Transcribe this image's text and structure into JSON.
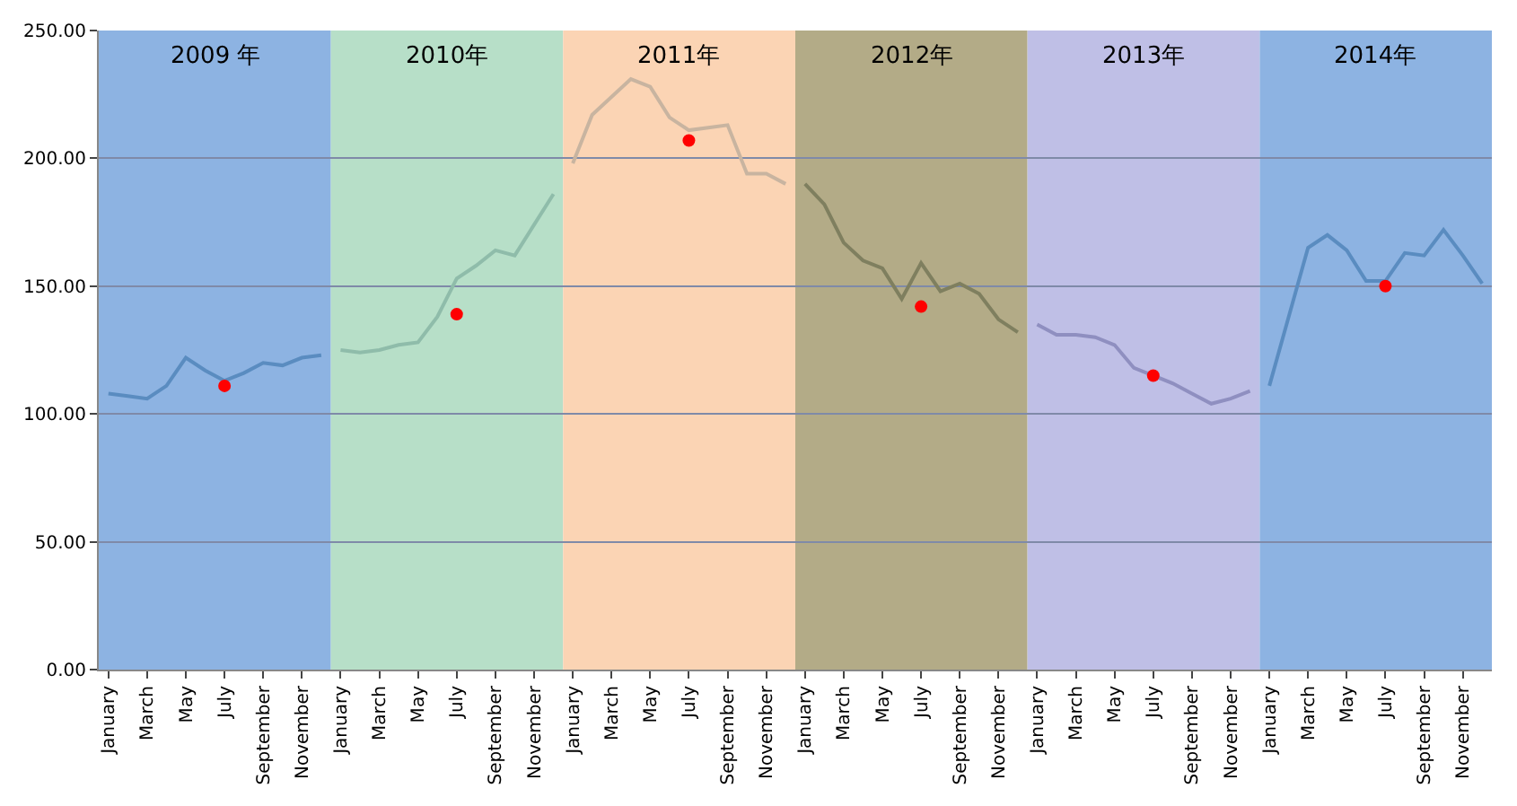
{
  "chart_data": {
    "type": "line",
    "categories": [
      "January",
      null,
      "March",
      null,
      "May",
      null,
      "July",
      null,
      "September",
      null,
      "November",
      null,
      "January",
      null,
      "March",
      null,
      "May",
      null,
      "July",
      null,
      "September",
      null,
      "November",
      null,
      "January",
      null,
      "March",
      null,
      "May",
      null,
      "July",
      null,
      "September",
      null,
      "November",
      null,
      "January",
      null,
      "March",
      null,
      "May",
      null,
      "July",
      null,
      "September",
      null,
      "November",
      null,
      "January",
      null,
      "March",
      null,
      "May",
      null,
      "July",
      null,
      "September",
      null,
      "November",
      null,
      "January",
      null,
      "March",
      null,
      "May",
      null,
      "July",
      null,
      "September",
      null,
      "November",
      null
    ],
    "series": [
      {
        "color": "#5a8cc0",
        "values": [
          108,
          107,
          106,
          111,
          122,
          117,
          113,
          116,
          120,
          119,
          122,
          123,
          null,
          null,
          null,
          null,
          null,
          null,
          null,
          null,
          null,
          null,
          null,
          null,
          null,
          null,
          null,
          null,
          null,
          null,
          null,
          null,
          null,
          null,
          null,
          null,
          null,
          null,
          null,
          null,
          null,
          null,
          null,
          null,
          null,
          null,
          null,
          null,
          null,
          null,
          null,
          null,
          null,
          null,
          null,
          null,
          null,
          null,
          null,
          null,
          null,
          null,
          null,
          null,
          null,
          null,
          null,
          null,
          null,
          null,
          null,
          null
        ]
      },
      {
        "color": "#8fbcaa",
        "values": [
          null,
          null,
          null,
          null,
          null,
          null,
          null,
          null,
          null,
          null,
          null,
          null,
          125,
          124,
          125,
          127,
          128,
          138,
          153,
          158,
          164,
          162,
          174,
          186,
          null,
          null,
          null,
          null,
          null,
          null,
          null,
          null,
          null,
          null,
          null,
          null,
          null,
          null,
          null,
          null,
          null,
          null,
          null,
          null,
          null,
          null,
          null,
          null,
          null,
          null,
          null,
          null,
          null,
          null,
          null,
          null,
          null,
          null,
          null,
          null,
          null,
          null,
          null,
          null,
          null,
          null,
          null,
          null,
          null,
          null,
          null,
          null
        ]
      },
      {
        "color": "#c8b4a0",
        "values": [
          null,
          null,
          null,
          null,
          null,
          null,
          null,
          null,
          null,
          null,
          null,
          null,
          null,
          null,
          null,
          null,
          null,
          null,
          null,
          null,
          null,
          null,
          null,
          null,
          198,
          217,
          224,
          231,
          228,
          216,
          211,
          212,
          213,
          194,
          194,
          190,
          null,
          null,
          null,
          null,
          null,
          null,
          null,
          null,
          null,
          null,
          null,
          null,
          null,
          null,
          null,
          null,
          null,
          null,
          null,
          null,
          null,
          null,
          null,
          null,
          null,
          null,
          null,
          null,
          null,
          null,
          null,
          null,
          null,
          null,
          null,
          null
        ]
      },
      {
        "color": "#7f7f5f",
        "values": [
          null,
          null,
          null,
          null,
          null,
          null,
          null,
          null,
          null,
          null,
          null,
          null,
          null,
          null,
          null,
          null,
          null,
          null,
          null,
          null,
          null,
          null,
          null,
          null,
          null,
          null,
          null,
          null,
          null,
          null,
          null,
          null,
          null,
          null,
          null,
          null,
          190,
          182,
          167,
          160,
          157,
          145,
          159,
          148,
          151,
          147,
          137,
          132,
          null,
          null,
          null,
          null,
          null,
          null,
          null,
          null,
          null,
          null,
          null,
          null,
          null,
          null,
          null,
          null,
          null,
          null,
          null,
          null,
          null,
          null,
          null,
          null
        ]
      },
      {
        "color": "#8f8fc0",
        "values": [
          null,
          null,
          null,
          null,
          null,
          null,
          null,
          null,
          null,
          null,
          null,
          null,
          null,
          null,
          null,
          null,
          null,
          null,
          null,
          null,
          null,
          null,
          null,
          null,
          null,
          null,
          null,
          null,
          null,
          null,
          null,
          null,
          null,
          null,
          null,
          null,
          null,
          null,
          null,
          null,
          null,
          null,
          null,
          null,
          null,
          null,
          null,
          null,
          135,
          131,
          131,
          130,
          127,
          118,
          115,
          112,
          108,
          104,
          106,
          109,
          null,
          null,
          null,
          null,
          null,
          null,
          null,
          null,
          null,
          null,
          null,
          null
        ]
      },
      {
        "color": "#5a8cc0",
        "values": [
          null,
          null,
          null,
          null,
          null,
          null,
          null,
          null,
          null,
          null,
          null,
          null,
          null,
          null,
          null,
          null,
          null,
          null,
          null,
          null,
          null,
          null,
          null,
          null,
          null,
          null,
          null,
          null,
          null,
          null,
          null,
          null,
          null,
          null,
          null,
          null,
          null,
          null,
          null,
          null,
          null,
          null,
          null,
          null,
          null,
          null,
          null,
          null,
          null,
          null,
          null,
          null,
          null,
          null,
          null,
          null,
          null,
          null,
          null,
          null,
          111,
          138,
          165,
          170,
          164,
          152,
          152,
          163,
          162,
          172,
          162,
          151
        ]
      },
      {
        "type": "scatter",
        "color": "#ff0000",
        "values": [
          null,
          null,
          null,
          null,
          null,
          null,
          111,
          null,
          null,
          null,
          null,
          null,
          null,
          null,
          null,
          null,
          null,
          null,
          139,
          null,
          null,
          null,
          null,
          null,
          null,
          null,
          null,
          null,
          null,
          null,
          207,
          null,
          null,
          null,
          null,
          null,
          null,
          null,
          null,
          null,
          null,
          null,
          142,
          null,
          null,
          null,
          null,
          null,
          null,
          null,
          null,
          null,
          null,
          null,
          115,
          null,
          null,
          null,
          null,
          null,
          null,
          null,
          null,
          null,
          null,
          null,
          150,
          null,
          null,
          null,
          null,
          null
        ]
      }
    ],
    "ylim": [
      0,
      250
    ],
    "yticks": [
      {
        "value": 0,
        "label": "0.00"
      },
      {
        "value": 50,
        "label": "50.00"
      },
      {
        "value": 100,
        "label": "100.00"
      },
      {
        "value": 150,
        "label": "150.00"
      },
      {
        "value": 200,
        "label": "200.00"
      },
      {
        "value": 250,
        "label": "250.00"
      }
    ],
    "grid": "y",
    "annotations": [
      "2009 年",
      "2010年",
      "2011年",
      "2012年",
      "2013年",
      "2014年"
    ]
  }
}
